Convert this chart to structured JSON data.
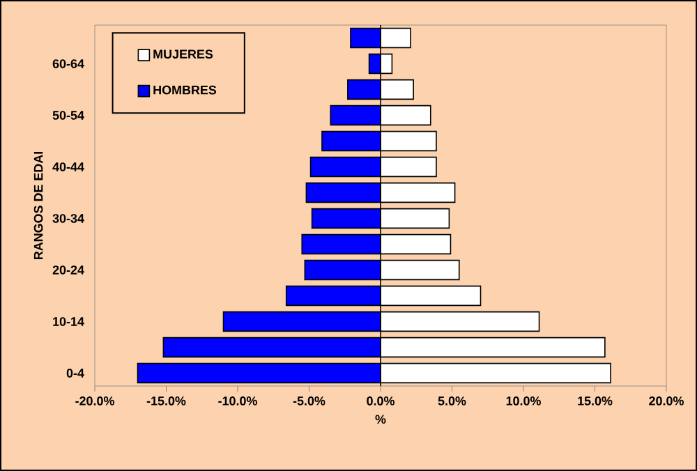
{
  "chart_data": {
    "type": "bar",
    "orientation": "horizontal",
    "stacked": true,
    "categories": [
      null,
      "60-64",
      null,
      "50-54",
      null,
      "40-44",
      null,
      "30-34",
      null,
      "20-24",
      null,
      "10-14",
      null,
      "0-4"
    ],
    "series": [
      {
        "name": "MUJERES",
        "color": "#ffffff",
        "values": [
          2.1,
          0.8,
          2.3,
          3.5,
          3.9,
          3.9,
          5.2,
          4.8,
          4.9,
          5.5,
          7.0,
          11.1,
          15.7,
          16.1
        ]
      },
      {
        "name": "HOMBRES",
        "color": "#0000ff",
        "values": [
          -2.1,
          -0.8,
          -2.3,
          -3.5,
          -4.1,
          -4.9,
          -5.2,
          -4.8,
          -5.5,
          -5.3,
          -6.6,
          -11.0,
          -15.2,
          -17.0
        ]
      }
    ],
    "xlabel": "%",
    "ylabel": "RANGOS DE EDAI",
    "xlim": [
      -20,
      20
    ],
    "xticks": [
      {
        "value": -20,
        "label": "-20.0%"
      },
      {
        "value": -15,
        "label": "-15.0%"
      },
      {
        "value": -10,
        "label": "-10.0%"
      },
      {
        "value": -5,
        "label": "-5.0%"
      },
      {
        "value": 0,
        "label": "0.0%"
      },
      {
        "value": 5,
        "label": "5.0%"
      },
      {
        "value": 10,
        "label": "10.0%"
      },
      {
        "value": 15,
        "label": "15.0%"
      },
      {
        "value": 20,
        "label": "20.0%"
      }
    ],
    "legend": "top left"
  }
}
